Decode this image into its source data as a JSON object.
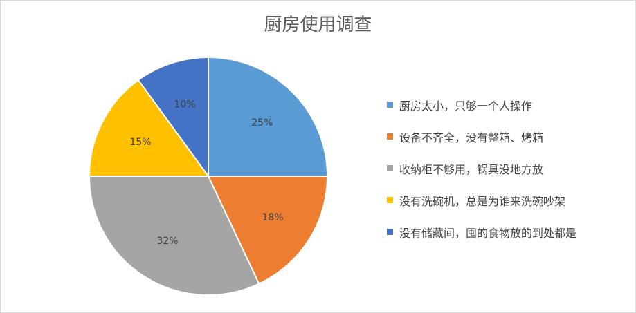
{
  "chart_data": {
    "type": "pie",
    "title": "厨房使用调查",
    "categories": [
      "厨房太小，只够一个人操作",
      "设备不齐全，没有整箱、烤箱",
      "收纳柜不够用，锅具没地方放",
      "没有洗碗机，总是为谁来洗碗吵架",
      "没有储藏间，囤的食物放的到处都是"
    ],
    "values": [
      25,
      18,
      32,
      15,
      10
    ],
    "data_labels": [
      "25%",
      "18%",
      "32%",
      "15%",
      "10%"
    ],
    "colors": [
      "#5B9BD5",
      "#ED7D31",
      "#A5A5A5",
      "#FFC000",
      "#4472C4"
    ],
    "legend_position": "right"
  }
}
